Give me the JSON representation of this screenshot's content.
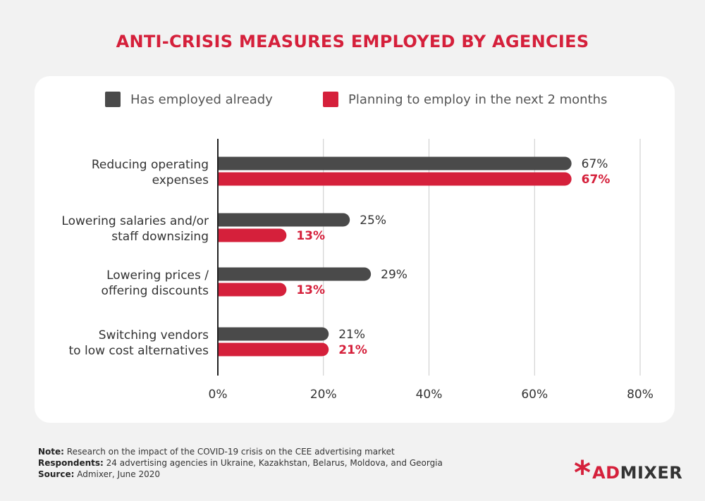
{
  "title": "ANTI-CRISIS MEASURES EMPLOYED BY AGENCIES",
  "colors": {
    "employed": "#4a4a4a",
    "planning": "#d5203b",
    "accent": "#d5203b"
  },
  "chart_data": {
    "type": "bar",
    "orientation": "horizontal",
    "categories": [
      [
        "Reducing operating",
        "expenses"
      ],
      [
        "Lowering salaries and/or",
        "staff downsizing"
      ],
      [
        "Lowering prices /",
        "offering discounts"
      ],
      [
        "Switching vendors",
        "to low cost alternatives"
      ]
    ],
    "series": [
      {
        "name": "Has employed already",
        "values": [
          67,
          25,
          29,
          21
        ],
        "labels": [
          "67%",
          "25%",
          "29%",
          "21%"
        ]
      },
      {
        "name": "Planning to employ in the next 2 months",
        "values": [
          67,
          13,
          13,
          21
        ],
        "labels": [
          "67%",
          "13%",
          "13%",
          "21%"
        ]
      }
    ],
    "xlim": [
      0,
      80
    ],
    "xticks": [
      0,
      20,
      40,
      60,
      80
    ],
    "xtick_labels": [
      "0%",
      "20%",
      "40%",
      "60%",
      "80%"
    ],
    "grid": true,
    "legend_position": "top"
  },
  "notes": [
    {
      "label": "Note:",
      "text": " Research on the impact of the COVID-19 crisis on the CEE advertising market"
    },
    {
      "label": "Respondents:",
      "text": " 24 advertising agencies in Ukraine, Kazakhstan, Belarus, Moldova, and Georgia"
    },
    {
      "label": "Source:",
      "text": " Admixer, June 2020"
    }
  ],
  "logo": {
    "mark": "*",
    "part1": "AD",
    "part2": "MIXER"
  }
}
